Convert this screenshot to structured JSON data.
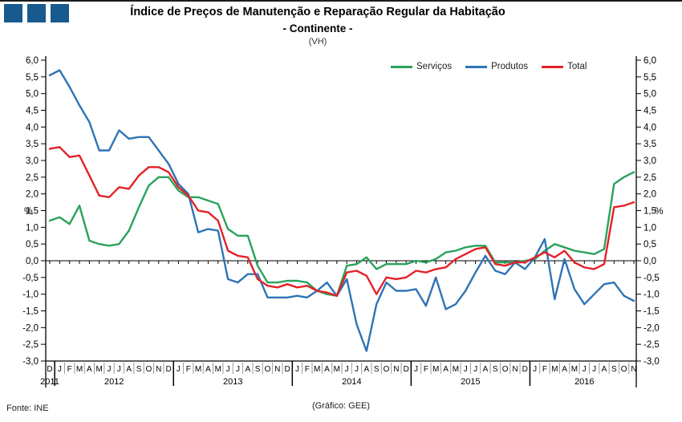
{
  "header": {
    "title_line1": "Índice de Preços de Manutenção e Reparação Regular da Habitação",
    "title_line2": "- Continente -",
    "subtitle": "(VH)"
  },
  "branding": {
    "squares_color": "#185a8d",
    "squares_count": 3
  },
  "axis": {
    "unit_label_left": "%",
    "unit_label_right": "%"
  },
  "footer": {
    "source": "Fonte: INE",
    "credit": "(Gráfico: GEE)"
  },
  "chart_data": {
    "type": "line",
    "title": "Índice de Preços de Manutenção e Reparação Regular da Habitação - Continente - (VH)",
    "ylabel": "%",
    "ylim": [
      -3.0,
      6.0
    ],
    "ytick_step": 0.5,
    "grid": false,
    "legend_position": "top",
    "x_months": [
      "D",
      "J",
      "F",
      "M",
      "A",
      "M",
      "J",
      "J",
      "A",
      "S",
      "O",
      "N",
      "D",
      "J",
      "F",
      "M",
      "A",
      "M",
      "J",
      "J",
      "A",
      "S",
      "O",
      "N",
      "D",
      "J",
      "F",
      "M",
      "A",
      "M",
      "J",
      "J",
      "A",
      "S",
      "O",
      "N",
      "D",
      "J",
      "F",
      "M",
      "A",
      "M",
      "J",
      "J",
      "A",
      "S",
      "O",
      "N",
      "D",
      "J",
      "F",
      "M",
      "A",
      "M",
      "J",
      "J",
      "A",
      "S",
      "O",
      "N"
    ],
    "years": [
      {
        "label": "2011",
        "from": 0,
        "to": 0
      },
      {
        "label": "2012",
        "from": 1,
        "to": 12
      },
      {
        "label": "2013",
        "from": 13,
        "to": 24
      },
      {
        "label": "2014",
        "from": 25,
        "to": 36
      },
      {
        "label": "2015",
        "from": 37,
        "to": 48
      },
      {
        "label": "2016",
        "from": 49,
        "to": 59
      }
    ],
    "series": [
      {
        "name": "Serviços",
        "color": "#2aa25c",
        "values": [
          1.2,
          1.3,
          1.1,
          1.65,
          0.6,
          0.5,
          0.45,
          0.5,
          0.9,
          1.6,
          2.25,
          2.5,
          2.5,
          2.1,
          1.9,
          1.9,
          1.8,
          1.7,
          0.95,
          0.75,
          0.75,
          -0.15,
          -0.65,
          -0.65,
          -0.6,
          -0.6,
          -0.65,
          -0.9,
          -1.0,
          -1.05,
          -0.15,
          -0.1,
          0.1,
          -0.25,
          -0.1,
          -0.1,
          -0.1,
          0.0,
          -0.05,
          0.05,
          0.25,
          0.3,
          0.4,
          0.45,
          0.45,
          -0.05,
          -0.05,
          -0.05,
          0.0,
          0.05,
          0.3,
          0.5,
          0.4,
          0.3,
          0.25,
          0.2,
          0.35,
          2.3,
          2.5,
          2.65
        ]
      },
      {
        "name": "Produtos",
        "color": "#2e74b5",
        "values": [
          5.55,
          5.7,
          5.2,
          4.65,
          4.15,
          3.3,
          3.3,
          3.9,
          3.65,
          3.7,
          3.7,
          3.3,
          2.9,
          2.3,
          2.0,
          0.85,
          0.95,
          0.9,
          -0.55,
          -0.65,
          -0.4,
          -0.4,
          -1.1,
          -1.1,
          -1.1,
          -1.05,
          -1.1,
          -0.9,
          -0.65,
          -1.05,
          -0.55,
          -1.9,
          -2.7,
          -1.3,
          -0.65,
          -0.9,
          -0.9,
          -0.85,
          -1.35,
          -0.5,
          -1.45,
          -1.3,
          -0.9,
          -0.35,
          0.15,
          -0.3,
          -0.4,
          -0.05,
          -0.25,
          0.1,
          0.65,
          -1.15,
          0.05,
          -0.85,
          -1.3,
          -1.0,
          -0.7,
          -0.65,
          -1.05,
          -1.2
        ]
      },
      {
        "name": "Total",
        "color": "#e32228",
        "values": [
          3.35,
          3.4,
          3.1,
          3.15,
          2.55,
          1.95,
          1.9,
          2.2,
          2.15,
          2.55,
          2.8,
          2.8,
          2.65,
          2.2,
          1.95,
          1.5,
          1.45,
          1.2,
          0.3,
          0.15,
          0.1,
          -0.55,
          -0.75,
          -0.8,
          -0.7,
          -0.8,
          -0.75,
          -0.9,
          -0.95,
          -1.05,
          -0.35,
          -0.3,
          -0.45,
          -1.0,
          -0.5,
          -0.55,
          -0.5,
          -0.3,
          -0.35,
          -0.25,
          -0.2,
          0.05,
          0.2,
          0.35,
          0.4,
          -0.1,
          -0.15,
          -0.05,
          -0.05,
          0.1,
          0.25,
          0.1,
          0.3,
          -0.05,
          -0.2,
          -0.25,
          -0.1,
          1.6,
          1.65,
          1.75
        ]
      }
    ]
  }
}
